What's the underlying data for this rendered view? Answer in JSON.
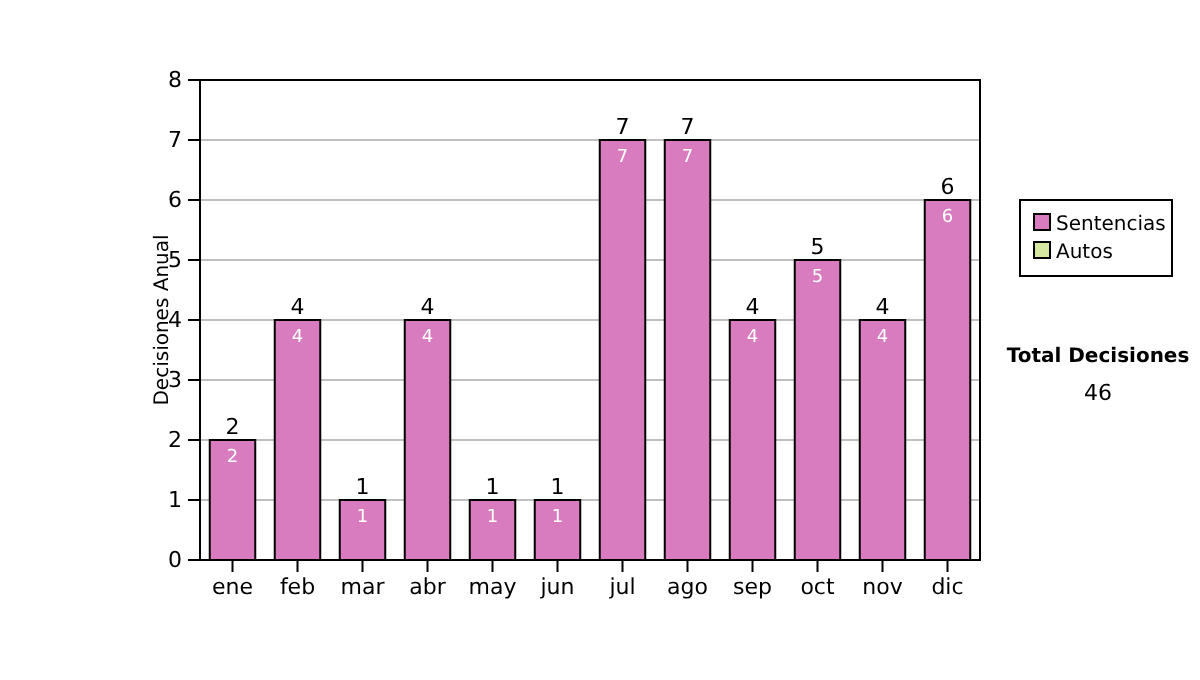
{
  "chart_data": {
    "type": "bar",
    "ylabel": "Decisiones Anual",
    "categories": [
      "ene",
      "feb",
      "mar",
      "abr",
      "may",
      "jun",
      "jul",
      "ago",
      "sep",
      "oct",
      "nov",
      "dic"
    ],
    "series": [
      {
        "name": "Sentencias",
        "color": "#d97bbf",
        "values": [
          2,
          4,
          1,
          4,
          1,
          1,
          7,
          7,
          4,
          5,
          4,
          6
        ],
        "value_labels": [
          "2",
          "4",
          "1",
          "4",
          "1",
          "1",
          "7",
          "7",
          "4",
          "5",
          "4",
          "6"
        ]
      },
      {
        "name": "Autos",
        "color": "#d6e8a0",
        "values": [
          0,
          0,
          0,
          0,
          0,
          0,
          0,
          0,
          0,
          0,
          0,
          0
        ],
        "value_labels": [
          null,
          null,
          null,
          null,
          null,
          null,
          null,
          null,
          null,
          null,
          null,
          null
        ]
      }
    ],
    "stacked": true,
    "totals": [
      "2",
      "4",
      "1",
      "4",
      "1",
      "1",
      "7",
      "7",
      "4",
      "5",
      "4",
      "6"
    ],
    "ylim": [
      0,
      8
    ],
    "yticks": [
      0,
      1,
      2,
      3,
      4,
      5,
      6,
      7,
      8
    ],
    "grid": "y",
    "legend": "right",
    "annotations": [
      "Total Decisiones",
      "46"
    ]
  }
}
